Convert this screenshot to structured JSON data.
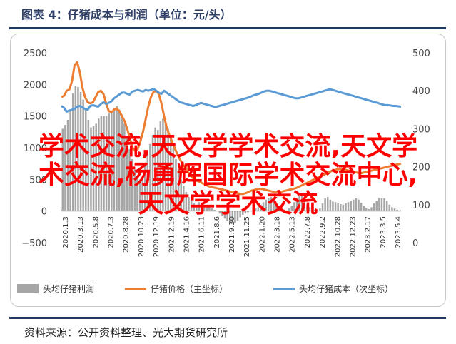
{
  "header": {
    "title": "图表 4：仔猪成本与利润（单位：元/头）"
  },
  "source_text": "资料来源：公开资料整理、光大期货研究所",
  "overlay_lines": [
    "学术交流,天文学学术交流,天文学",
    "术交流,杨勇辉国际学术交流中心,",
    "天文学学术交流"
  ],
  "colors": {
    "profit_bars": "#a6a6a6",
    "price_line": "#ed7d31",
    "cost_line": "#5b9bd5",
    "overlay_text": "#ff0000",
    "title_text": "#2f3f66",
    "rule": "#1f3864"
  },
  "chart_data": {
    "type": "bar+line",
    "left_axis": {
      "ticks": [
        "2500",
        "2000",
        "1500",
        "1000",
        "500",
        "0",
        "−500"
      ],
      "ylim": [
        -500,
        2500
      ]
    },
    "right_axis": {
      "ticks": [
        "500",
        "400",
        "300",
        "200",
        "100",
        "0"
      ],
      "ylim": [
        0,
        500
      ]
    },
    "x_tick_labels": [
      "2020.1.3",
      "2020.3.13",
      "2020.5.8",
      "2020.7.3",
      "2020.8.28",
      "2020.10.23",
      "2020.12.19",
      "2021.2.19",
      "2021.4.16",
      "2021.6.11",
      "2021.8.6",
      "2021.9.30",
      "2021.11.25",
      "2022.1.20",
      "2022.3.18",
      "2022.5.13",
      "2022.7.8",
      "2022.9.2",
      "2022.10.28",
      "2022.12.23",
      "2023.2.17",
      "2023.3.5",
      "2023.5.4"
    ],
    "grid": false,
    "legend_position": "bottom",
    "series": [
      {
        "name": "头均仔猪利润",
        "axis": "left",
        "type": "bar",
        "values": [
          1300,
          1360,
          1440,
          1600,
          1860,
          1980,
          1960,
          1880,
          1760,
          1600,
          1440,
          1320,
          1340,
          1380,
          1460,
          1500,
          1500,
          1500,
          1540,
          1560,
          1620,
          1660,
          1600,
          1500,
          1380,
          1180,
          980,
          820,
          660,
          520,
          500,
          520,
          720,
          900,
          1060,
          1200,
          1320,
          1280,
          1420,
          1460,
          1400,
          1300,
          1160,
          1000,
          820,
          660,
          500,
          400,
          300,
          220,
          180,
          120,
          100,
          140,
          120,
          100,
          80,
          60,
          40,
          20,
          0,
          -40,
          -80,
          -120,
          -160,
          -180,
          -200,
          -190,
          -150,
          -100,
          -60,
          -40,
          -20,
          0,
          20,
          40,
          60,
          100,
          140,
          180,
          200,
          220,
          160,
          120,
          80,
          40,
          20,
          10,
          40,
          80,
          140,
          200,
          240,
          260,
          180,
          100,
          60,
          40,
          20,
          10,
          40,
          120,
          200,
          220,
          180,
          150,
          140,
          120,
          110,
          100,
          120,
          140,
          160,
          180,
          200,
          180,
          130,
          80,
          40,
          30,
          60,
          120,
          160,
          200,
          210,
          200,
          160,
          100,
          60,
          40,
          20,
          10
        ]
      },
      {
        "name": "仔猪价格（主坐标）",
        "axis": "left",
        "type": "line",
        "values": [
          1800,
          1820,
          1900,
          1920,
          2050,
          2300,
          2350,
          2200,
          1950,
          1800,
          1720,
          1700,
          1720,
          1800,
          1880,
          1900,
          1850,
          1700,
          1580,
          1560,
          1600,
          1620,
          1580,
          1500,
          1420,
          1300,
          1150,
          1000,
          950,
          980,
          1100,
          1250,
          1450,
          1650,
          1800,
          1880,
          1900,
          1850,
          1700,
          1500,
          1320,
          1200,
          1100,
          1000,
          900,
          820,
          750,
          700,
          620,
          560,
          520,
          490,
          470,
          450,
          430,
          410,
          390,
          380,
          370,
          360,
          350,
          340,
          330,
          320,
          310,
          300,
          290,
          280,
          270,
          270,
          280,
          300,
          320,
          330,
          340,
          350,
          350,
          340,
          330,
          320,
          310,
          300,
          300,
          300,
          310,
          320,
          330,
          340,
          350,
          360,
          380,
          400,
          420,
          440,
          460,
          480,
          500,
          520,
          540,
          560,
          580,
          600,
          620,
          640,
          650,
          660,
          660,
          660,
          650,
          640,
          630,
          620,
          610,
          600,
          600,
          610,
          620,
          630,
          640,
          650,
          660,
          670,
          680,
          690,
          700,
          710,
          720,
          730,
          740,
          750
        ]
      },
      {
        "name": "头均仔猪成本（次坐标）",
        "axis": "right",
        "type": "line",
        "values": [
          360,
          355,
          345,
          348,
          350,
          352,
          358,
          360,
          356,
          352,
          350,
          360,
          362,
          360,
          358,
          365,
          370,
          365,
          368,
          372,
          380,
          385,
          390,
          395,
          395,
          392,
          390,
          398,
          400,
          402,
          400,
          398,
          402,
          400,
          402,
          405,
          400,
          395,
          392,
          400,
          395,
          390,
          385,
          380,
          375,
          370,
          368,
          366,
          364,
          362,
          360,
          362,
          365,
          368,
          366,
          364,
          362,
          360,
          358,
          358,
          360,
          362,
          364,
          366,
          368,
          370,
          372,
          374,
          376,
          378,
          380,
          382,
          385,
          388,
          390,
          392,
          395,
          398,
          400,
          400,
          398,
          396,
          394,
          392,
          390,
          388,
          386,
          384,
          382,
          380,
          380,
          382,
          384,
          386,
          388,
          390,
          392,
          394,
          396,
          398,
          400,
          402,
          404,
          402,
          400,
          398,
          396,
          394,
          392,
          390,
          388,
          386,
          384,
          382,
          380,
          378,
          376,
          374,
          372,
          370,
          368,
          366,
          364,
          362,
          362,
          361,
          360,
          360,
          359,
          358
        ]
      }
    ]
  }
}
